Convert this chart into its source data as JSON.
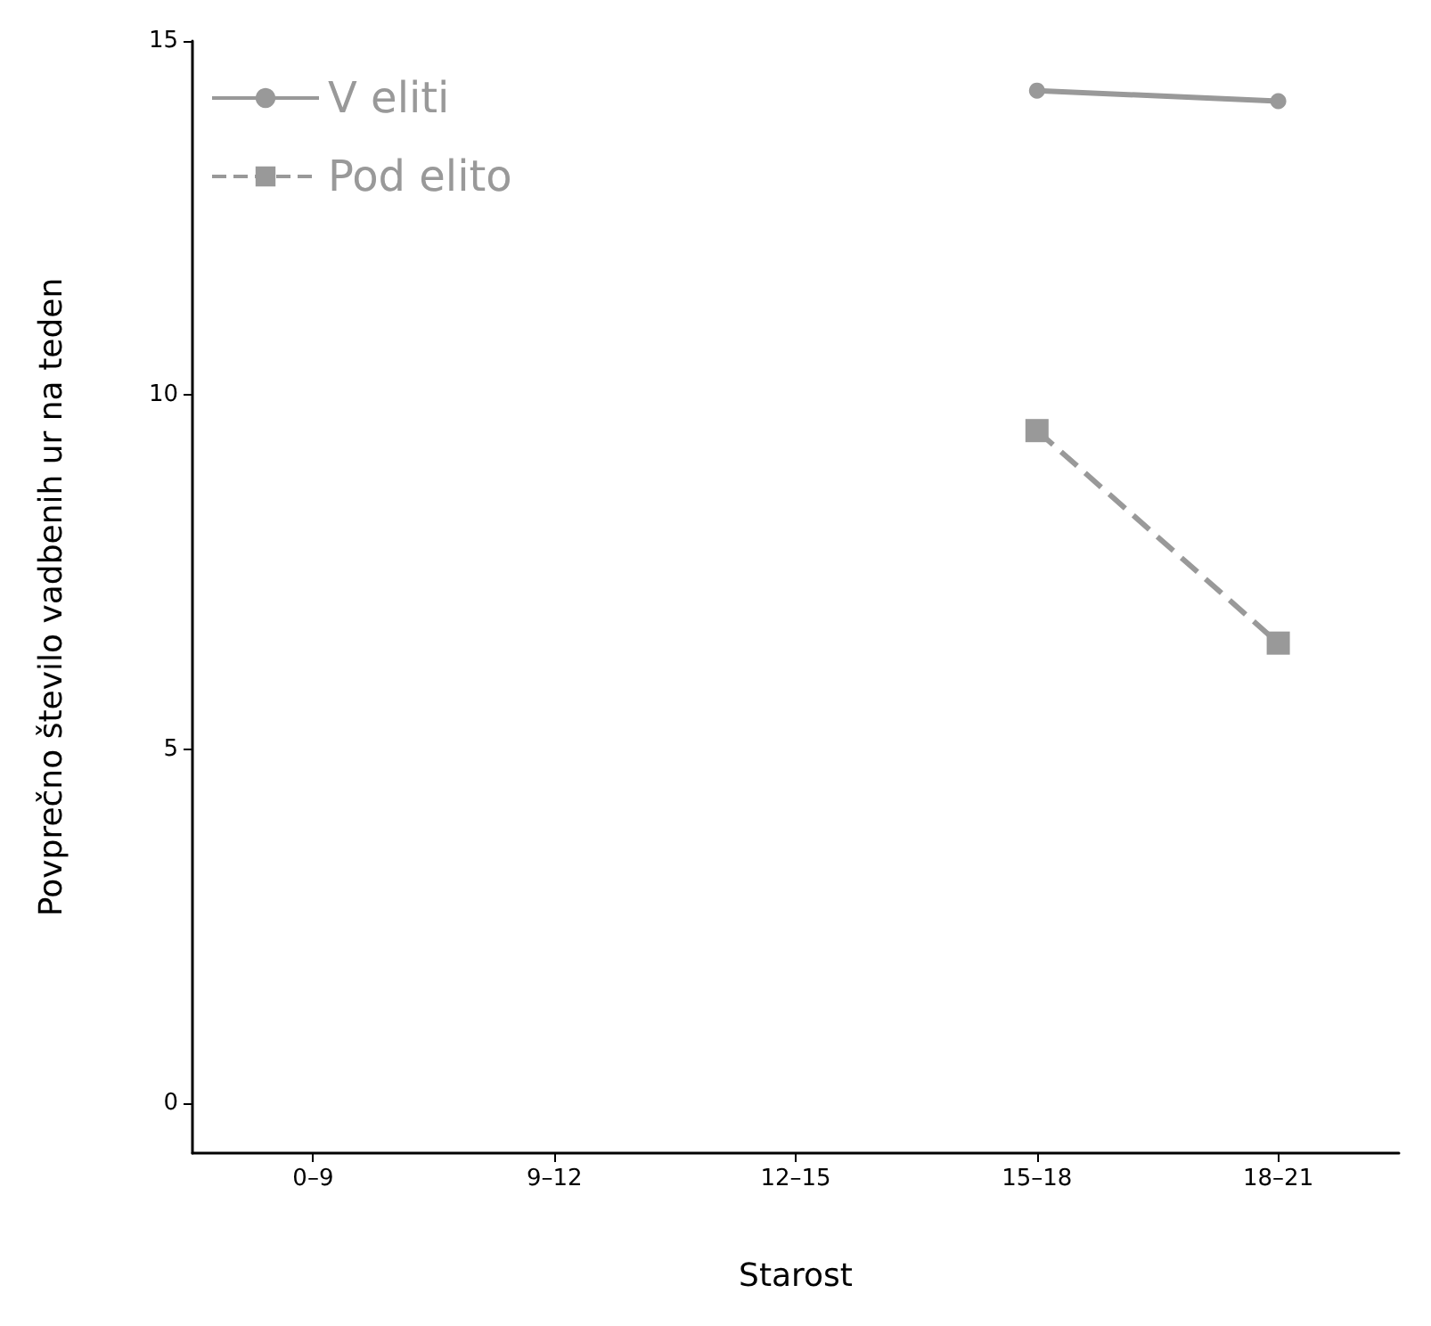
{
  "chart_data": {
    "type": "line",
    "xlabel": "Starost",
    "ylabel": "Povprečno število vadbenih ur na teden",
    "categories": [
      "0–9",
      "9–12",
      "12–15",
      "15–18",
      "18–21"
    ],
    "ylim": [
      -0.7,
      15
    ],
    "yticks": [
      0,
      5,
      10,
      15
    ],
    "grid": false,
    "legend": "top left",
    "series": [
      {
        "name": "V eliti",
        "color": "#999999",
        "marker": "circle",
        "line_style": "solid",
        "values": [
          null,
          null,
          null,
          14.3,
          14.15
        ]
      },
      {
        "name": "Pod elito",
        "color": "#999999",
        "marker": "square",
        "line_style": "dashed",
        "values": [
          null,
          null,
          null,
          9.5,
          6.5
        ]
      }
    ]
  }
}
